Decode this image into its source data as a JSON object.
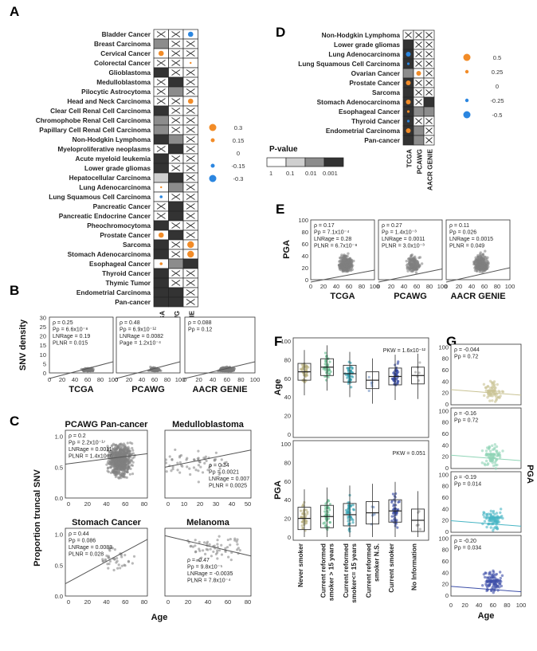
{
  "panels": {
    "A": "A",
    "B": "B",
    "C": "C",
    "D": "D",
    "E": "E",
    "F": "F",
    "G": "G"
  },
  "heatmapA": {
    "rows": [
      "Bladder Cancer",
      "Breast Carcinoma",
      "Cervical Cancer",
      "Colorectal Cancer",
      "Glioblastoma",
      "Medulloblastoma",
      "Pilocytic Astrocytoma",
      "Head and Neck Carcinoma",
      "Clear Cell Renal Cell Carcinoma",
      "Chromophobe Renal Cell Carcinoma",
      "Papillary Cell Renal Cell Carcinoma",
      "Non-Hodgkin Lymphoma",
      "Myeloproliferative neoplasms",
      "Acute myeloid leukemia",
      "Lower grade gliomas",
      "Hepatocellular Carcinoma",
      "Lung Adenocarcinoma",
      "Lung Squamous Cell Carcinoma",
      "Pancreatic Cancer",
      "Pancreatic Endocrine Cancer",
      "Pheochromocytoma",
      "Prostate Cancer",
      "Sarcoma",
      "Stomach Adenocarcinoma",
      "Esophageal Cancer",
      "Thyroid Cancer",
      "Thymic Tumor",
      "Endometrial Carcinoma",
      "Pan-cancer"
    ],
    "columns": [
      "TCGA",
      "PCAWG",
      "AACR GENIE"
    ],
    "cells": [
      [
        "x",
        "x",
        "dot-blue"
      ],
      [
        "mid",
        "x",
        "x"
      ],
      [
        "dot-orange",
        "x",
        "x"
      ],
      [
        "x",
        "x",
        "dot-small"
      ],
      [
        "dark",
        "x",
        "x"
      ],
      [
        "x",
        "dark",
        "x"
      ],
      [
        "x",
        "mid",
        "x"
      ],
      [
        "x",
        "x",
        "dot-orange"
      ],
      [
        "dark",
        "x",
        "x"
      ],
      [
        "mid",
        "x",
        "x"
      ],
      [
        "mid",
        "x",
        "x"
      ],
      [
        "dark",
        "mid",
        "x"
      ],
      [
        "x",
        "dark",
        "x"
      ],
      [
        "dark",
        "x",
        "x"
      ],
      [
        "dark",
        "x",
        "x"
      ],
      [
        "light",
        "dark",
        "x"
      ],
      [
        "dot-small",
        "mid",
        "x"
      ],
      [
        "dot-blue-s",
        "x",
        "x"
      ],
      [
        "x",
        "dark",
        "x"
      ],
      [
        "x",
        "dark",
        "x"
      ],
      [
        "dark",
        "x",
        "x"
      ],
      [
        "dot-orange",
        "dark",
        "x"
      ],
      [
        "dark",
        "x",
        "dot-orange-l"
      ],
      [
        "dark",
        "x",
        "dot-orange-l"
      ],
      [
        "dot-orange-s",
        "mid",
        "dark"
      ],
      [
        "dark",
        "x",
        "x"
      ],
      [
        "dark",
        "x",
        "x"
      ],
      [
        "dark",
        "dark",
        "x"
      ],
      [
        "dark",
        "dark",
        "x"
      ]
    ]
  },
  "legendA": {
    "values": [
      "0.3",
      "0.15",
      "0",
      "-0.15",
      "-0.3"
    ]
  },
  "pvalueLegend": {
    "title": "P-value",
    "ticks": [
      "1",
      "0.1",
      "0.01",
      "0.001"
    ]
  },
  "heatmapD": {
    "rows": [
      "Non-Hodgkin Lymphoma",
      "Lower grade gliomas",
      "Lung Adenocarcinoma",
      "Lung Squamous Cell Carcinoma",
      "Ovarian Cancer",
      "Prostate Cancer",
      "Sarcoma",
      "Stomach Adenocarcinoma",
      "Esophageal Cancer",
      "Thyroid Cancer",
      "Endometrial Carcinoma",
      "Pan-cancer"
    ],
    "columns": [
      "TCGA",
      "PCAWG",
      "AACR GENIE"
    ]
  },
  "legendD": {
    "values": [
      "0.5",
      "0.25",
      "0",
      "-0.25",
      "-0.5"
    ]
  },
  "panelE": {
    "ylabel": "PGA",
    "subplots": [
      {
        "name": "TCGA",
        "stats": [
          "ρ = 0.17",
          "Pρ = 7.1x10⁻⁴",
          "LNRage = 0.28",
          "PLNR = 6.7x10⁻⁸"
        ]
      },
      {
        "name": "PCAWG",
        "stats": [
          "ρ = 0.27",
          "Pρ = 1.4x10⁻³",
          "LNRage = 0.0011",
          "PLNR = 3.0x10⁻³"
        ]
      },
      {
        "name": "AACR GENIE",
        "stats": [
          "ρ = 0.11",
          "Pρ = 0.026",
          "LNRage = 0.0015",
          "PLNR = 0.049"
        ]
      }
    ],
    "yticks": [
      "0",
      "20",
      "40",
      "60",
      "80",
      "100"
    ],
    "xticks": [
      "0",
      "20",
      "40",
      "60",
      "80",
      "100"
    ]
  },
  "panelB": {
    "ylabel": "SNV density",
    "subplots": [
      {
        "name": "TCGA",
        "stats": [
          "ρ = 0.25",
          "Pρ = 6.6x10⁻⁸",
          "LNRage = 0.19",
          "PLNR = 0.015"
        ]
      },
      {
        "name": "PCAWG",
        "stats": [
          "ρ = 0.48",
          "Pρ = 6.9x10⁻¹²",
          "LNRage = 0.0082",
          "Page = 1.2x10⁻⁴"
        ]
      },
      {
        "name": "AACR GENIE",
        "stats": [
          "ρ = 0.088",
          "Pρ = 0.12"
        ]
      }
    ],
    "yticks": [
      "0",
      "5",
      "10",
      "15",
      "20",
      "25",
      "30"
    ],
    "xticks": [
      "0",
      "20",
      "40",
      "60",
      "80",
      "100"
    ]
  },
  "panelC": {
    "ylabel": "Proportion truncal SNV",
    "xlabel": "Age",
    "subplots": [
      {
        "name": "PCAWG Pan-cancer",
        "stats": [
          "ρ = 0.2",
          "Pρ = 2.2x10⁻¹⁷",
          "LNRage = 0.0011",
          "PLNR = 1.4x10⁻⁷"
        ]
      },
      {
        "name": "Medulloblastoma",
        "stats": [
          "ρ = 0.34",
          "Pρ = 0.0021",
          "LNRage = 0.007",
          "PLNR = 0.0025"
        ]
      },
      {
        "name": "Stomach Cancer",
        "stats": [
          "ρ = 0.44",
          "Pρ = 0.086",
          "LNRage = 0.0083",
          "PLNR = 0.028"
        ]
      },
      {
        "name": "Melanoma",
        "stats": [
          "ρ = -0.47",
          "Pρ = 9.8x10⁻⁵",
          "LNRage = -0.0035",
          "PLNR = 7.8x10⁻⁴"
        ]
      }
    ],
    "yticks": [
      "0.0",
      "0.5",
      "1.0"
    ],
    "xticks_left": [
      "0",
      "20",
      "40",
      "60",
      "80"
    ],
    "xticks_right": [
      "0",
      "10",
      "20",
      "30",
      "40",
      "50"
    ],
    "xticks_mel": [
      "0",
      "20",
      "40",
      "60",
      "80"
    ]
  },
  "panelF": {
    "ylabel_top": "Age",
    "ylabel_bottom": "PGA",
    "pkw_top": "PKW = 1.6x10⁻¹²",
    "pkw_bottom": "PKW = 0.051",
    "categories": [
      "Never smoker",
      "Current reformed smoker > 15 years",
      "Current reformed smoker<= 15 years",
      "Current reformed smoker N.S.",
      "Current smoker",
      "No Information"
    ],
    "yticks": [
      "0",
      "20",
      "40",
      "60",
      "80",
      "100"
    ]
  },
  "panelG": {
    "ylabel": "PGA",
    "xlabel": "Age",
    "subplots": [
      {
        "stats": [
          "ρ = -0.044",
          "Pρ = 0.72"
        ]
      },
      {
        "stats": [
          "ρ = -0.16",
          "Pρ = 0.72"
        ]
      },
      {
        "stats": [
          "ρ = -0.19",
          "Pρ = 0.014"
        ]
      },
      {
        "stats": [
          "ρ = -0.20",
          "Pρ = 0.034"
        ]
      }
    ],
    "yticks": [
      "0",
      "20",
      "40",
      "60",
      "80",
      "100"
    ],
    "xticks": [
      "0",
      "20",
      "40",
      "60",
      "80",
      "100"
    ]
  },
  "colors": {
    "orange": "#f28c28",
    "blue": "#2b86e0",
    "dark": "#333333",
    "mid": "#8c8c8c",
    "light": "#cfcfcf"
  }
}
